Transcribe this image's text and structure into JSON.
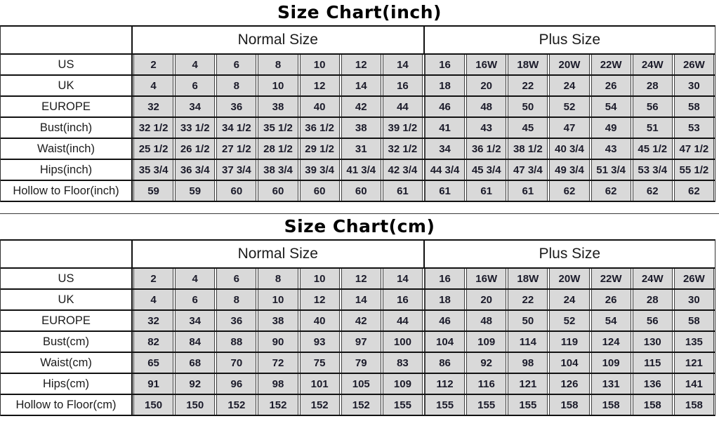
{
  "colors": {
    "cell_background": "#d9d9d9",
    "grid_border": "#111111",
    "text": "#1b1b1b"
  },
  "charts": [
    {
      "title": "Size Chart(inch)",
      "group_headers": [
        "Normal Size",
        "Plus Size"
      ],
      "rows": [
        {
          "label": "US",
          "values": [
            "2",
            "4",
            "6",
            "8",
            "10",
            "12",
            "14",
            "16",
            "16W",
            "18W",
            "20W",
            "22W",
            "24W",
            "26W"
          ]
        },
        {
          "label": "UK",
          "values": [
            "4",
            "6",
            "8",
            "10",
            "12",
            "14",
            "16",
            "18",
            "20",
            "22",
            "24",
            "26",
            "28",
            "30"
          ]
        },
        {
          "label": "EUROPE",
          "values": [
            "32",
            "34",
            "36",
            "38",
            "40",
            "42",
            "44",
            "46",
            "48",
            "50",
            "52",
            "54",
            "56",
            "58"
          ]
        },
        {
          "label": "Bust(inch)",
          "values": [
            "32 1/2",
            "33 1/2",
            "34 1/2",
            "35 1/2",
            "36 1/2",
            "38",
            "39 1/2",
            "41",
            "43",
            "45",
            "47",
            "49",
            "51",
            "53"
          ]
        },
        {
          "label": "Waist(inch)",
          "values": [
            "25 1/2",
            "26 1/2",
            "27 1/2",
            "28 1/2",
            "29 1/2",
            "31",
            "32 1/2",
            "34",
            "36 1/2",
            "38 1/2",
            "40 3/4",
            "43",
            "45 1/2",
            "47 1/2"
          ]
        },
        {
          "label": "Hips(inch)",
          "values": [
            "35 3/4",
            "36 3/4",
            "37 3/4",
            "38 3/4",
            "39 3/4",
            "41 3/4",
            "42 3/4",
            "44 3/4",
            "45 3/4",
            "47 3/4",
            "49 3/4",
            "51 3/4",
            "53 3/4",
            "55 1/2"
          ]
        },
        {
          "label": "Hollow to Floor(inch)",
          "values": [
            "59",
            "59",
            "60",
            "60",
            "60",
            "60",
            "61",
            "61",
            "61",
            "61",
            "62",
            "62",
            "62",
            "62"
          ]
        }
      ]
    },
    {
      "title": "Size Chart(cm)",
      "group_headers": [
        "Normal Size",
        "Plus Size"
      ],
      "rows": [
        {
          "label": "US",
          "values": [
            "2",
            "4",
            "6",
            "8",
            "10",
            "12",
            "14",
            "16",
            "16W",
            "18W",
            "20W",
            "22W",
            "24W",
            "26W"
          ]
        },
        {
          "label": "UK",
          "values": [
            "4",
            "6",
            "8",
            "10",
            "12",
            "14",
            "16",
            "18",
            "20",
            "22",
            "24",
            "26",
            "28",
            "30"
          ]
        },
        {
          "label": "EUROPE",
          "values": [
            "32",
            "34",
            "36",
            "38",
            "40",
            "42",
            "44",
            "46",
            "48",
            "50",
            "52",
            "54",
            "56",
            "58"
          ]
        },
        {
          "label": "Bust(cm)",
          "values": [
            "82",
            "84",
            "88",
            "90",
            "93",
            "97",
            "100",
            "104",
            "109",
            "114",
            "119",
            "124",
            "130",
            "135"
          ]
        },
        {
          "label": "Waist(cm)",
          "values": [
            "65",
            "68",
            "70",
            "72",
            "75",
            "79",
            "83",
            "86",
            "92",
            "98",
            "104",
            "109",
            "115",
            "121"
          ]
        },
        {
          "label": "Hips(cm)",
          "values": [
            "91",
            "92",
            "96",
            "98",
            "101",
            "105",
            "109",
            "112",
            "116",
            "121",
            "126",
            "131",
            "136",
            "141"
          ]
        },
        {
          "label": "Hollow to Floor(cm)",
          "values": [
            "150",
            "150",
            "152",
            "152",
            "152",
            "152",
            "155",
            "155",
            "155",
            "155",
            "158",
            "158",
            "158",
            "158"
          ]
        }
      ]
    }
  ]
}
